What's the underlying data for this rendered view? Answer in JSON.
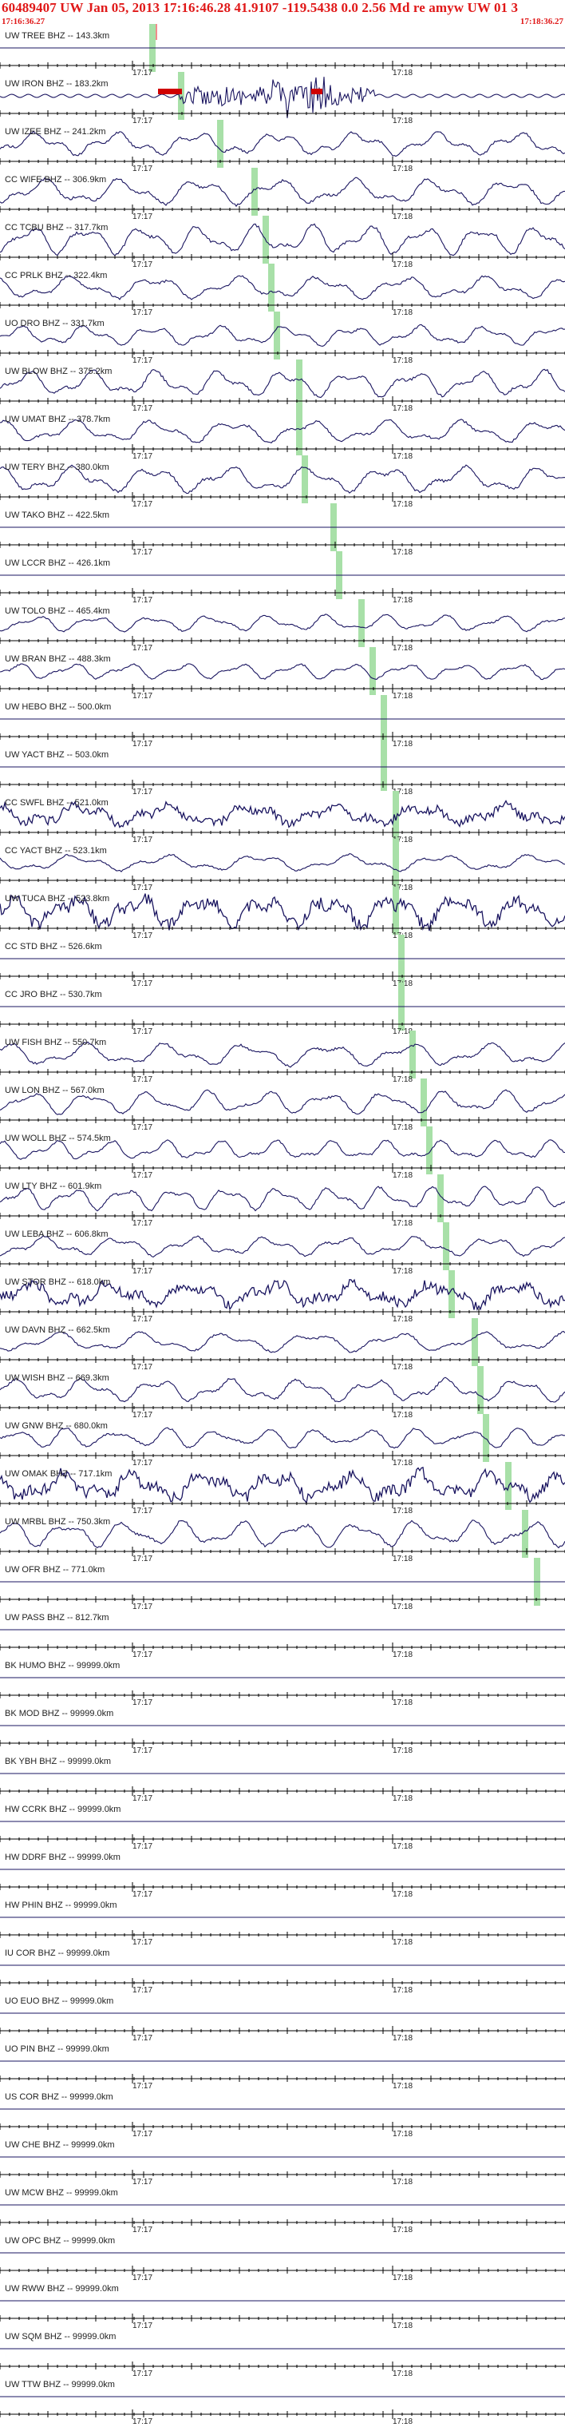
{
  "header": {
    "title": "60489407 UW Jan 05, 2013 17:16:46.28   41.9107 -119.5438  0.0 2.56 Md re amyw UW 01   3",
    "start_time": "17:16:36.27",
    "end_time": "17:18:36.27"
  },
  "time_ticks": {
    "minute_a": "17:17",
    "minute_b": "17:18"
  },
  "colors": {
    "header_text": "#e01818",
    "trace": "#1a1560",
    "axis": "#000000",
    "pick_bar": "#a8e0a8",
    "clip": "#d00000"
  },
  "event": {
    "origin_label": "17:16:46.28"
  },
  "traces": [
    {
      "label": "UW TREE BHZ -- 143.3km",
      "amp": 0,
      "kind": "flat",
      "pick": 0.27
    },
    {
      "label": "UW IRON BHZ -- 183.2km",
      "amp": 4,
      "kind": "event",
      "pick": 0.32
    },
    {
      "label": "UW IZEE BHZ -- 241.2km",
      "amp": 14,
      "kind": "wave",
      "pick": 0.39
    },
    {
      "label": "CC WIFE BHZ -- 306.9km",
      "amp": 16,
      "kind": "wave",
      "pick": 0.45
    },
    {
      "label": "CC TCBU BHZ -- 317.7km",
      "amp": 18,
      "kind": "wave",
      "pick": 0.47
    },
    {
      "label": "CC PRLK BHZ -- 322.4km",
      "amp": 14,
      "kind": "wave",
      "pick": 0.48
    },
    {
      "label": "UO DRO BHZ -- 331.7km",
      "amp": 12,
      "kind": "wave",
      "pick": 0.49
    },
    {
      "label": "UW BLOW BHZ -- 375.2km",
      "amp": 16,
      "kind": "wave",
      "pick": 0.53
    },
    {
      "label": "UW UMAT BHZ -- 378.7km",
      "amp": 14,
      "kind": "wave",
      "pick": 0.53
    },
    {
      "label": "UW TERY BHZ -- 380.0km",
      "amp": 16,
      "kind": "wave",
      "pick": 0.54
    },
    {
      "label": "UW TAKO BHZ -- 422.5km",
      "amp": 0,
      "kind": "flat",
      "pick": 0.59
    },
    {
      "label": "UW LCCR BHZ -- 426.1km",
      "amp": 0,
      "kind": "flat",
      "pick": 0.6
    },
    {
      "label": "UW TOLO BHZ -- 465.4km",
      "amp": 10,
      "kind": "wave",
      "pick": 0.64
    },
    {
      "label": "UW BRAN BHZ -- 488.3km",
      "amp": 10,
      "kind": "wave",
      "pick": 0.66
    },
    {
      "label": "UW HEBO BHZ -- 500.0km",
      "amp": 0,
      "kind": "flat",
      "pick": 0.68
    },
    {
      "label": "UW YACT BHZ -- 503.0km",
      "amp": 0,
      "kind": "flat",
      "pick": 0.68
    },
    {
      "label": "CC SWFL BHZ -- 521.0km",
      "amp": 12,
      "kind": "noisy",
      "pick": 0.7
    },
    {
      "label": "CC YACT BHZ -- 523.1km",
      "amp": 10,
      "kind": "wave",
      "pick": 0.7
    },
    {
      "label": "UW TUCA BHZ -- 523.8km",
      "amp": 18,
      "kind": "noisy",
      "pick": 0.7
    },
    {
      "label": "CC STD BHZ -- 526.6km",
      "amp": 0,
      "kind": "flat",
      "pick": 0.71
    },
    {
      "label": "CC JRO BHZ -- 530.7km",
      "amp": 0,
      "kind": "flat",
      "pick": 0.71
    },
    {
      "label": "UW FISH BHZ -- 550.7km",
      "amp": 14,
      "kind": "wave",
      "pick": 0.73
    },
    {
      "label": "UW LON BHZ -- 567.0km",
      "amp": 14,
      "kind": "wave",
      "pick": 0.75
    },
    {
      "label": "UW WOLL BHZ -- 574.5km",
      "amp": 12,
      "kind": "wave",
      "pick": 0.76
    },
    {
      "label": "UW LTY BHZ -- 601.9km",
      "amp": 14,
      "kind": "wave",
      "pick": 0.78
    },
    {
      "label": "UW LEBA BHZ -- 606.8km",
      "amp": 12,
      "kind": "wave",
      "pick": 0.79
    },
    {
      "label": "UW STOR BHZ -- 618.0km",
      "amp": 14,
      "kind": "noisy",
      "pick": 0.8
    },
    {
      "label": "UW DAVN BHZ -- 662.5km",
      "amp": 12,
      "kind": "wave",
      "pick": 0.84
    },
    {
      "label": "UW WISH BHZ -- 669.3km",
      "amp": 14,
      "kind": "wave",
      "pick": 0.85
    },
    {
      "label": "UW GNW BHZ -- 680.0km",
      "amp": 12,
      "kind": "wave",
      "pick": 0.86
    },
    {
      "label": "UW OMAK BHZ -- 717.1km",
      "amp": 16,
      "kind": "noisy",
      "pick": 0.9
    },
    {
      "label": "UW MRBL BHZ -- 750.3km",
      "amp": 16,
      "kind": "wave",
      "pick": 0.93
    },
    {
      "label": "UW OFR BHZ -- 771.0km",
      "amp": 0,
      "kind": "flat",
      "pick": 0.95
    },
    {
      "label": "UW PASS BHZ -- 812.7km",
      "amp": 0,
      "kind": "flat",
      "pick": null
    },
    {
      "label": "BK HUMO BHZ -- 99999.0km",
      "amp": 0,
      "kind": "flat",
      "pick": null
    },
    {
      "label": "BK MOD BHZ -- 99999.0km",
      "amp": 0,
      "kind": "flat",
      "pick": null
    },
    {
      "label": "BK YBH BHZ -- 99999.0km",
      "amp": 0,
      "kind": "flat",
      "pick": null
    },
    {
      "label": "HW CCRK BHZ -- 99999.0km",
      "amp": 0,
      "kind": "flat",
      "pick": null
    },
    {
      "label": "HW DDRF BHZ -- 99999.0km",
      "amp": 0,
      "kind": "flat",
      "pick": null
    },
    {
      "label": "HW PHIN BHZ -- 99999.0km",
      "amp": 0,
      "kind": "flat",
      "pick": null
    },
    {
      "label": "IU COR BHZ -- 99999.0km",
      "amp": 0,
      "kind": "flat",
      "pick": null
    },
    {
      "label": "UO EUO BHZ -- 99999.0km",
      "amp": 0,
      "kind": "flat",
      "pick": null
    },
    {
      "label": "UO PIN BHZ -- 99999.0km",
      "amp": 0,
      "kind": "flat",
      "pick": null
    },
    {
      "label": "US COR BHZ -- 99999.0km",
      "amp": 0,
      "kind": "flat",
      "pick": null
    },
    {
      "label": "UW CHE BHZ -- 99999.0km",
      "amp": 0,
      "kind": "flat",
      "pick": null
    },
    {
      "label": "UW MCW BHZ -- 99999.0km",
      "amp": 0,
      "kind": "flat",
      "pick": null
    },
    {
      "label": "UW OPC BHZ -- 99999.0km",
      "amp": 0,
      "kind": "flat",
      "pick": null
    },
    {
      "label": "UW RWW BHZ -- 99999.0km",
      "amp": 0,
      "kind": "flat",
      "pick": null
    },
    {
      "label": "UW SQM BHZ -- 99999.0km",
      "amp": 0,
      "kind": "flat",
      "pick": null
    },
    {
      "label": "UW TTW BHZ -- 99999.0km",
      "amp": 0,
      "kind": "flat",
      "pick": null
    }
  ]
}
